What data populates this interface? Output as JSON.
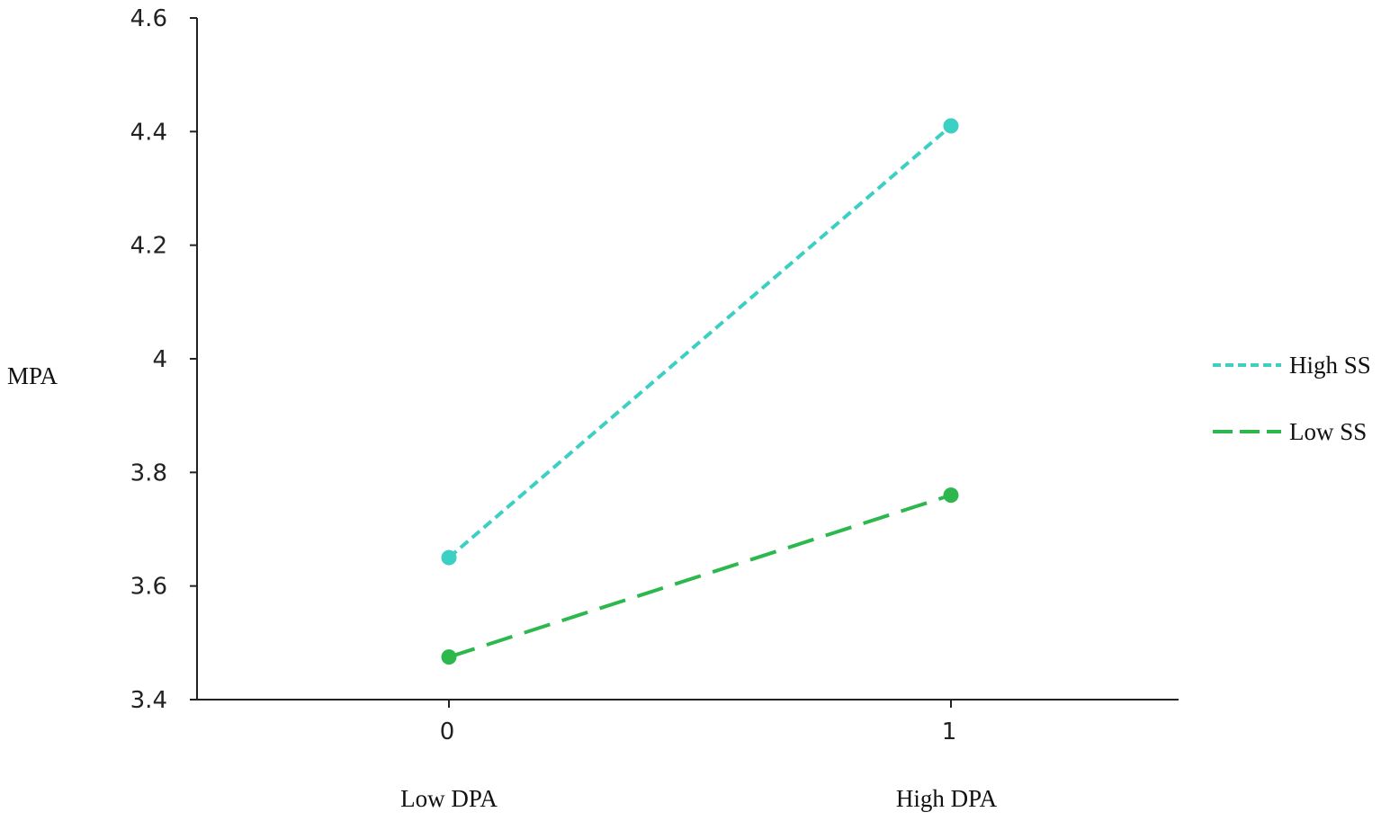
{
  "chart_data": {
    "type": "line",
    "ylabel": "MPA",
    "ylim": [
      3.4,
      4.6
    ],
    "yticks": [
      "4.6",
      "4.4",
      "4.2",
      "4",
      "3.8",
      "3.6",
      "3.4"
    ],
    "x": [
      0,
      1
    ],
    "xticks": [
      "0",
      "1"
    ],
    "x_categories": [
      "Low DPA",
      "High DPA"
    ],
    "grid": false,
    "legend_placement": "right",
    "series": [
      {
        "name": "High SS",
        "values": [
          3.65,
          4.41
        ],
        "color": "#3ccfc4",
        "line_style": "short-dash"
      },
      {
        "name": "Low SS",
        "values": [
          3.475,
          3.76
        ],
        "color": "#2db84d",
        "line_style": "long-dash"
      }
    ]
  }
}
